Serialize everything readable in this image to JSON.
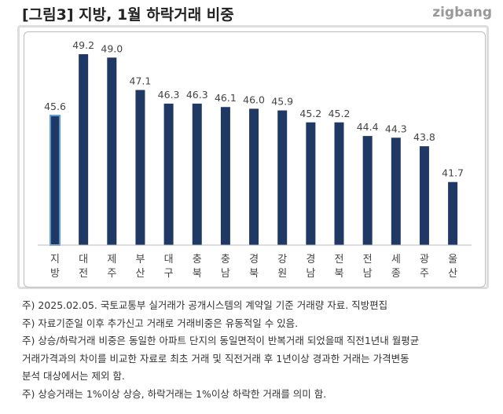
{
  "title": "[그림3]  지방, 1월 하락거래 비중",
  "logo": "zigbang",
  "chart_data": {
    "type": "bar",
    "categories": [
      "지방",
      "대전",
      "제주",
      "부산",
      "대구",
      "충북",
      "충남",
      "경북",
      "강원",
      "경남",
      "전북",
      "전남",
      "세종",
      "광주",
      "울산"
    ],
    "values": [
      45.6,
      49.2,
      49.0,
      47.1,
      46.3,
      46.3,
      46.1,
      46.0,
      45.9,
      45.2,
      45.2,
      44.4,
      44.3,
      43.8,
      41.7
    ],
    "ylim": [
      38,
      50
    ],
    "grid": false,
    "colors": {
      "bar": "#1f3864",
      "highlight_border": "#5b9bd5"
    }
  },
  "notes": [
    "주) 2025.02.05. 국토교통부 실거래가 공개시스템의 계약일 기준 거래량  자료. 직방편집",
    "주) 자료기준일 이후 추가신고 거래로 거래비중은 유동적일 수 있음.",
    "주) 상승/하락거래 비중은 동일한 아파트 단지의 동일면적이 반복거래 되었을때 직전1년내 월평균",
    "거래가격과의 차이를 비교한 자료로 최초 거래 및 직전거래 후 1년이상 경과한 거래는 가격변동",
    "분석 대상에서는 제외 함.",
    "주) 상승거래는 1%이상 상승, 하락거래는 1%이상 하락한 거래를 의미 함."
  ]
}
